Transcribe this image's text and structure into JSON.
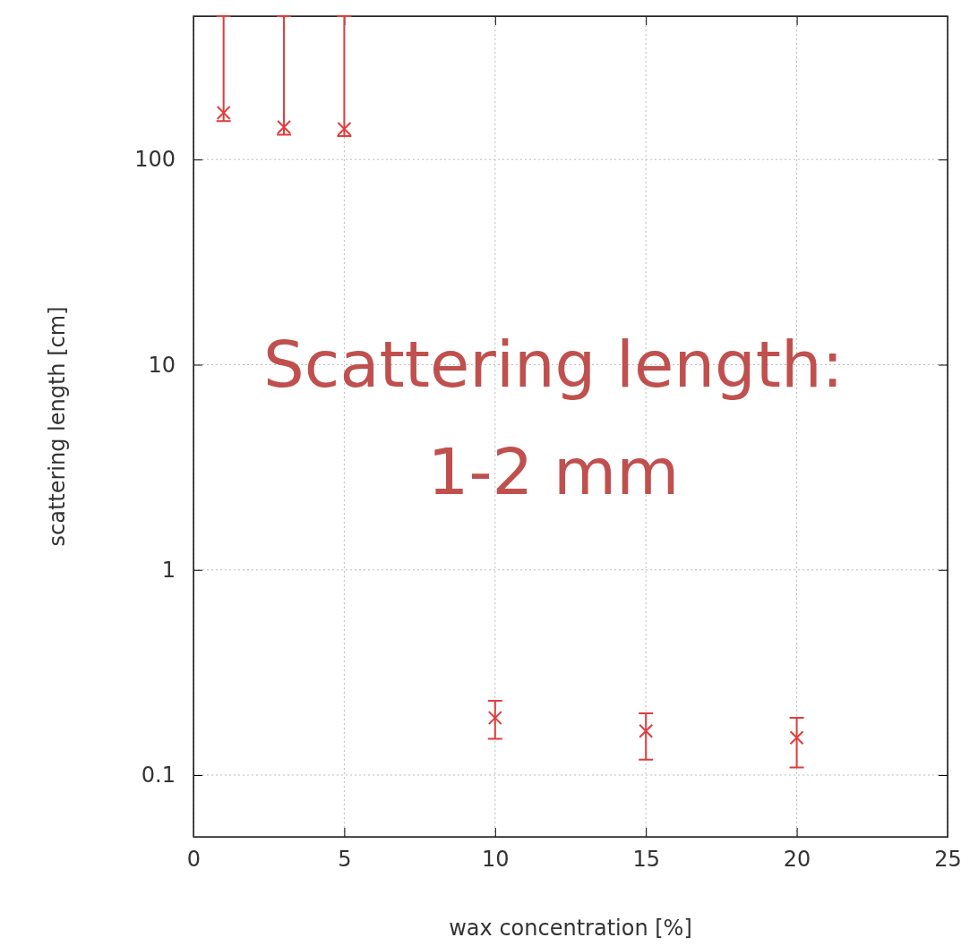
{
  "chart_data": {
    "type": "scatter",
    "xlabel": "wax concentration [%]",
    "ylabel": "scattering length [cm]",
    "x": [
      1,
      3,
      5,
      10,
      15,
      20
    ],
    "series": [
      {
        "color": "#e03c3c",
        "values": [
          169,
          144,
          141,
          0.19,
          0.164,
          0.152
        ],
        "errors": [
          [
            154,
            500
          ],
          [
            132,
            500
          ],
          [
            130,
            500
          ],
          [
            0.15,
            0.23
          ],
          [
            0.119,
            0.2
          ],
          [
            0.109,
            0.19
          ]
        ]
      }
    ],
    "xlim": [
      0,
      25
    ],
    "xticks": [
      0,
      5,
      10,
      15,
      20,
      25
    ],
    "ylim": [
      0.05,
      500
    ],
    "yticks": [
      0.1,
      1,
      10,
      100
    ],
    "log": "y",
    "grid": true,
    "marker": "cross",
    "annotations": [
      "Scattering length: 1-2 mm"
    ]
  }
}
